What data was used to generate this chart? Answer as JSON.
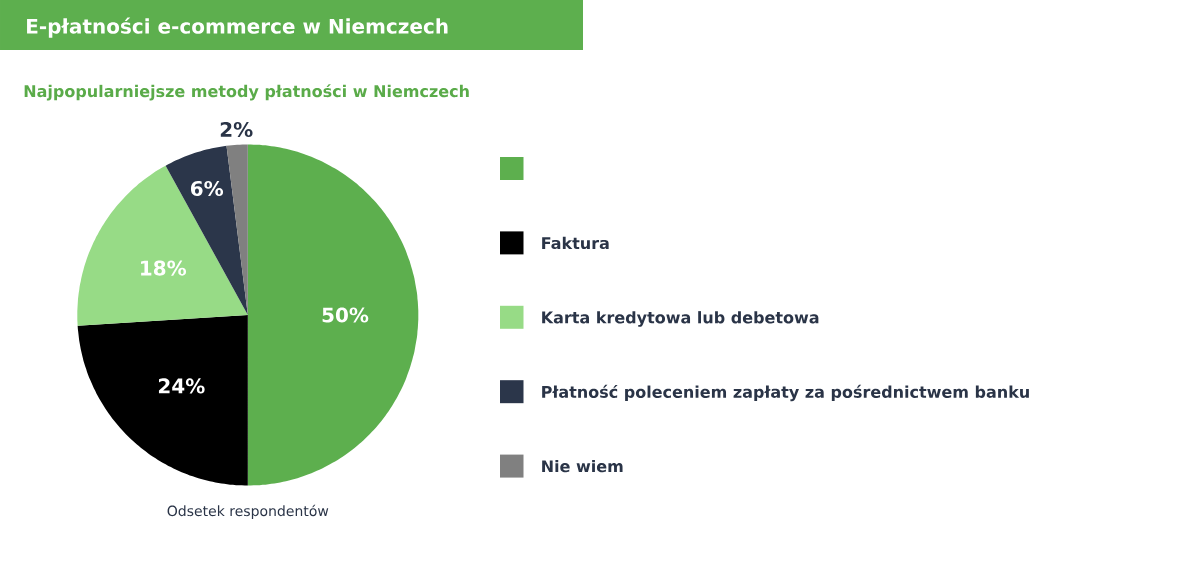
{
  "chart_data": {
    "type": "pie",
    "title": "E-płatności e-commerce w Niemczech",
    "subtitle": "Najpopularniejsze metody płatności w Niemczech",
    "categories": [
      null,
      "Faktura",
      "Karta kredytowa lub debetowa",
      "Płatność poleceniem zapłaty za pośrednictwem banku",
      "Nie wiem"
    ],
    "values": [
      50,
      24,
      18,
      6,
      2
    ],
    "colors": [
      "#5daf4e",
      "#000000",
      "#97db86",
      "#2b364a",
      "#808080"
    ],
    "value_labels": [
      "50%",
      "24%",
      "18%",
      "6%",
      "2%"
    ],
    "legend": "right",
    "annotations": [
      "Odsetek respondentów"
    ]
  }
}
